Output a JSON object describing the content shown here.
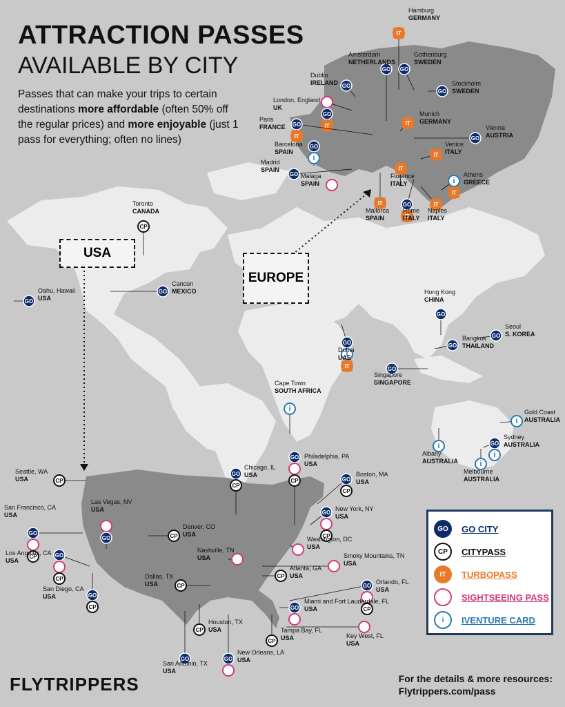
{
  "title": {
    "line1": "ATTRACTION PASSES",
    "line2": "AVAILABLE BY CITY"
  },
  "intro": {
    "p1": "Passes that can make your trips to certain destinations ",
    "b1": "more affordable",
    "p2": " (often 50% off the regular prices) and ",
    "b2": "more enjoyable",
    "p3": " (just 1 pass for everything; often no lines)"
  },
  "regions": {
    "usa": "USA",
    "europe": "EUROPE"
  },
  "colors": {
    "go": "#0d2c6b",
    "cp": "#111111",
    "it": "#e8792a",
    "sp": "#d23b7a",
    "iv": "#2a7ab0",
    "land": "#ececec",
    "usa_land": "#8a8a8a",
    "europe_land": "#8a8a8a",
    "bg": "#c9c9c9"
  },
  "legend": [
    {
      "code": "GO",
      "label": "GO CITY",
      "color": "#0d2c6b"
    },
    {
      "code": "CP",
      "label": "CITYPASS",
      "color": "#111111"
    },
    {
      "code": "IT",
      "label": "TURBOPASS",
      "color": "#e8792a"
    },
    {
      "code": "SP",
      "label": "SIGHTSEEING PASS",
      "color": "#d23b7a"
    },
    {
      "code": "i",
      "label": "IVENTURE CARD",
      "color": "#2a7ab0"
    }
  ],
  "cities": [
    {
      "name": "Hamburg",
      "country": "GERMANY",
      "passes": [
        "IT"
      ]
    },
    {
      "name": "Amsterdam",
      "country": "NETHERLANDS",
      "passes": [
        "GO"
      ]
    },
    {
      "name": "Gothenburg",
      "country": "SWEDEN",
      "passes": [
        "GO"
      ]
    },
    {
      "name": "Dublin",
      "country": "IRELAND",
      "passes": [
        "GO"
      ]
    },
    {
      "name": "Stockholm",
      "country": "SWEDEN",
      "passes": [
        "GO"
      ]
    },
    {
      "name": "London, England",
      "country": "UK",
      "passes": [
        "SP",
        "GO",
        "IT"
      ]
    },
    {
      "name": "Munich",
      "country": "GERMANY",
      "passes": [
        "IT"
      ]
    },
    {
      "name": "Paris",
      "country": "FRANCE",
      "passes": [
        "GO",
        "IT"
      ]
    },
    {
      "name": "Vienna",
      "country": "AUSTRIA",
      "passes": [
        "GO"
      ]
    },
    {
      "name": "Barcelona",
      "country": "SPAIN",
      "passes": [
        "GO",
        "i"
      ]
    },
    {
      "name": "Venice",
      "country": "ITALY",
      "passes": [
        "IT"
      ]
    },
    {
      "name": "Madrid",
      "country": "SPAIN",
      "passes": [
        "GO"
      ]
    },
    {
      "name": "Athens",
      "country": "GREECE",
      "passes": [
        "i",
        "IT"
      ]
    },
    {
      "name": "Malaga",
      "country": "SPAIN",
      "passes": [
        "SP"
      ]
    },
    {
      "name": "Florence",
      "country": "ITALY",
      "passes": [
        "IT"
      ]
    },
    {
      "name": "Mallorca",
      "country": "SPAIN",
      "passes": [
        "IT"
      ]
    },
    {
      "name": "Rome",
      "country": "ITALY",
      "passes": [
        "GO",
        "IT"
      ]
    },
    {
      "name": "Naples",
      "country": "ITALY",
      "passes": [
        "IT"
      ]
    },
    {
      "name": "Toronto",
      "country": "CANADA",
      "passes": [
        "CP"
      ]
    },
    {
      "name": "Oahu, Hawaii",
      "country": "USA",
      "passes": [
        "GO"
      ]
    },
    {
      "name": "Cancún",
      "country": "MEXICO",
      "passes": [
        "GO"
      ]
    },
    {
      "name": "Hong Kong",
      "country": "CHINA",
      "passes": [
        "GO"
      ]
    },
    {
      "name": "Seoul",
      "country": "S. KOREA",
      "passes": [
        "GO"
      ]
    },
    {
      "name": "Bangkok",
      "country": "THAILAND",
      "passes": [
        "GO"
      ]
    },
    {
      "name": "Dubai",
      "country": "UAE",
      "passes": [
        "GO",
        "i",
        "IT"
      ]
    },
    {
      "name": "Singapore",
      "country": "SINGAPORE",
      "passes": [
        "GO"
      ]
    },
    {
      "name": "Cape Town",
      "country": "SOUTH AFRICA",
      "passes": [
        "i"
      ]
    },
    {
      "name": "Gold Coast",
      "country": "AUSTRALIA",
      "passes": [
        "i"
      ]
    },
    {
      "name": "Sydney",
      "country": "AUSTRALIA",
      "passes": [
        "GO",
        "i"
      ]
    },
    {
      "name": "Albany",
      "country": "AUSTRALIA",
      "passes": [
        "i"
      ]
    },
    {
      "name": "Melbourne",
      "country": "AUSTRALIA",
      "passes": [
        "i"
      ]
    },
    {
      "name": "Seattle, WA",
      "country": "USA",
      "passes": [
        "CP"
      ]
    },
    {
      "name": "Chicago, IL",
      "country": "USA",
      "passes": [
        "GO",
        "CP"
      ]
    },
    {
      "name": "Philadelphia, PA",
      "country": "USA",
      "passes": [
        "GO",
        "SP",
        "CP"
      ]
    },
    {
      "name": "Boston, MA",
      "country": "USA",
      "passes": [
        "GO",
        "CP"
      ]
    },
    {
      "name": "San Francisco, CA",
      "country": "USA",
      "passes": [
        "GO",
        "SP",
        "CP"
      ]
    },
    {
      "name": "Las Vegas, NV",
      "country": "USA",
      "passes": [
        "SP",
        "GO"
      ]
    },
    {
      "name": "New York, NY",
      "country": "USA",
      "passes": [
        "GO",
        "SP",
        "CP"
      ]
    },
    {
      "name": "Denver, CO",
      "country": "USA",
      "passes": [
        "CP"
      ]
    },
    {
      "name": "Washington, DC",
      "country": "USA",
      "passes": [
        "SP"
      ]
    },
    {
      "name": "Nashville, TN",
      "country": "USA",
      "passes": [
        "SP"
      ]
    },
    {
      "name": "Smoky Mountains, TN",
      "country": "USA",
      "passes": [
        "SP"
      ]
    },
    {
      "name": "Los Angeles, CA",
      "country": "USA",
      "passes": [
        "GO",
        "SP",
        "CP"
      ]
    },
    {
      "name": "Atlanta, GA",
      "country": "USA",
      "passes": [
        "CP"
      ]
    },
    {
      "name": "Dallas, TX",
      "country": "USA",
      "passes": [
        "CP"
      ]
    },
    {
      "name": "Orlando, FL",
      "country": "USA",
      "passes": [
        "GO",
        "SP",
        "CP"
      ]
    },
    {
      "name": "San Diego, CA",
      "country": "USA",
      "passes": [
        "GO",
        "CP"
      ]
    },
    {
      "name": "Miami and Fort Lauderdale, FL",
      "country": "USA",
      "passes": [
        "GO",
        "SP"
      ]
    },
    {
      "name": "Houston, TX",
      "country": "USA",
      "passes": [
        "CP"
      ]
    },
    {
      "name": "Tampa Bay, FL",
      "country": "USA",
      "passes": [
        "CP"
      ]
    },
    {
      "name": "Key West, FL",
      "country": "USA",
      "passes": [
        "SP"
      ]
    },
    {
      "name": "San Antonio, TX",
      "country": "USA",
      "passes": [
        "GO"
      ]
    },
    {
      "name": "New Orleans, LA",
      "country": "USA",
      "passes": [
        "GO",
        "SP"
      ]
    }
  ],
  "footer": {
    "details": "For the details & more resources:",
    "url": "Flytrippers.com/pass",
    "logo": "FLYTRIPPERS"
  }
}
